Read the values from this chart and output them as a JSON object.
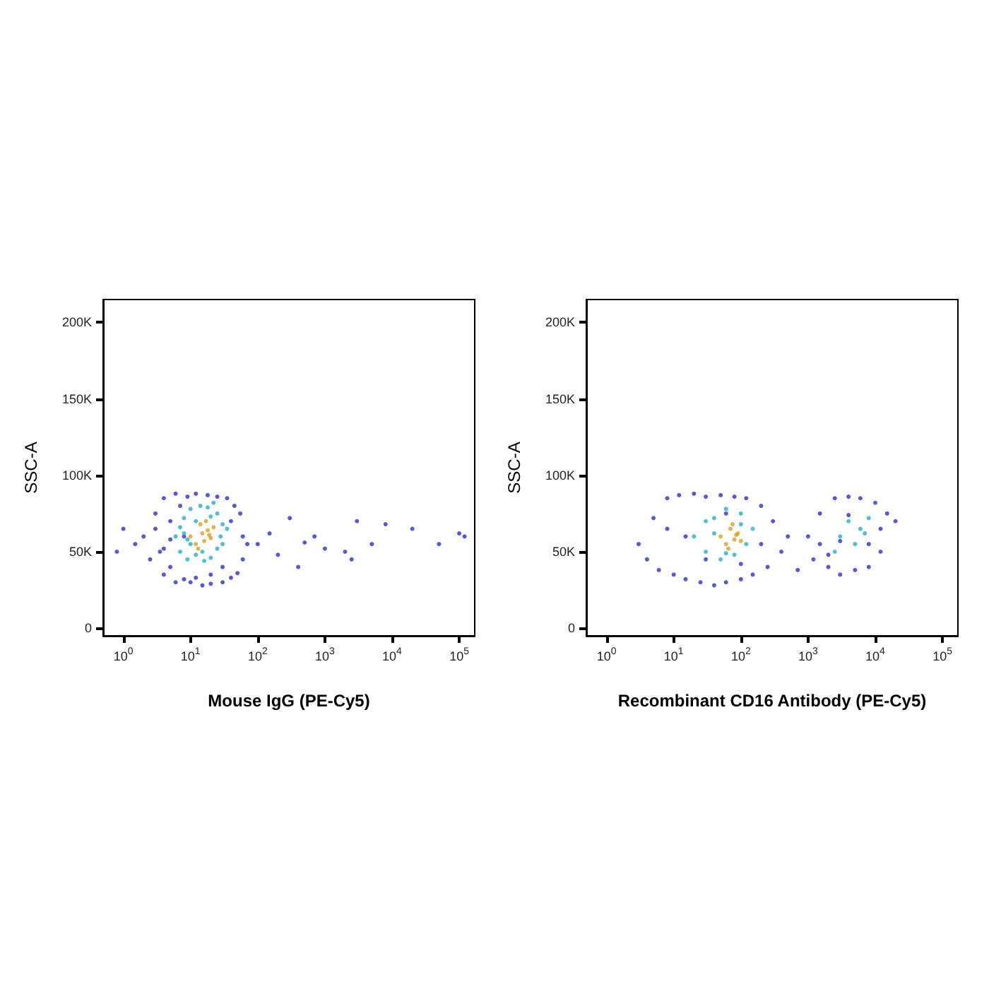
{
  "chart_data": [
    {
      "type": "scatter",
      "xlabel": "Mouse IgG (PE-Cy5)",
      "ylabel": "SSC-A",
      "log": "x",
      "grid": false,
      "marker": "circle",
      "xlim": [
        0.5,
        170000
      ],
      "ylim": [
        -5000,
        215000
      ],
      "xticks": [
        {
          "value": 1,
          "label": "10$^{0}$"
        },
        {
          "value": 10,
          "label": "10$^{1}$"
        },
        {
          "value": 100,
          "label": "10$^{2}$"
        },
        {
          "value": 1000,
          "label": "10$^{3}$"
        },
        {
          "value": 10000,
          "label": "10$^{4}$"
        },
        {
          "value": 100000,
          "label": "10$^{5}$"
        }
      ],
      "yticks": [
        0,
        {
          "value": 50000,
          "label": "50K"
        },
        {
          "value": 100000,
          "label": "100K"
        },
        {
          "value": 150000,
          "label": "150K"
        },
        {
          "value": 200000,
          "label": "200K"
        }
      ],
      "series": [
        {
          "color": "#2a2fd0",
          "x": [
            2,
            2.5,
            3,
            3.5,
            4,
            4,
            5,
            5,
            6,
            6,
            7,
            8,
            9,
            10,
            12,
            15,
            18,
            20,
            25,
            30,
            35,
            40,
            45,
            50,
            55,
            60,
            70,
            3,
            4,
            5,
            30,
            40,
            60,
            8,
            12,
            20,
            1,
            1.5,
            0.8,
            100,
            150,
            200,
            300,
            500,
            700,
            1000,
            2000,
            3000,
            5000,
            8000,
            20000,
            50000,
            100000,
            120000,
            400,
            2500
          ],
          "values": [
            60000,
            45000,
            75000,
            50000,
            35000,
            85000,
            40000,
            70000,
            30000,
            88000,
            80000,
            32000,
            86000,
            30000,
            88000,
            28000,
            87000,
            29000,
            86000,
            30000,
            85000,
            33000,
            80000,
            36000,
            75000,
            45000,
            55000,
            65000,
            52000,
            58000,
            40000,
            70000,
            60000,
            60000,
            33000,
            35000,
            65000,
            55000,
            50000,
            55000,
            62000,
            48000,
            72000,
            56000,
            60000,
            52000,
            50000,
            70000,
            55000,
            68000,
            65000,
            55000,
            62000,
            60000,
            40000,
            45000
          ]
        },
        {
          "color": "#22b0c8",
          "x": [
            6,
            7,
            8,
            9,
            10,
            12,
            14,
            16,
            18,
            20,
            25,
            30,
            35,
            8,
            10,
            12,
            15,
            20,
            25,
            30,
            7,
            9,
            28,
            22
          ],
          "values": [
            60000,
            50000,
            72000,
            45000,
            78000,
            48000,
            80000,
            44000,
            79000,
            46000,
            75000,
            55000,
            65000,
            62000,
            55000,
            70000,
            50000,
            73000,
            52000,
            68000,
            66000,
            58000,
            60000,
            82000
          ]
        },
        {
          "color": "#d8a020",
          "x": [
            10,
            12,
            14,
            15,
            16,
            18,
            20,
            22,
            13,
            17,
            19
          ],
          "values": [
            60000,
            55000,
            68000,
            62000,
            57000,
            64000,
            59000,
            66000,
            52000,
            70000,
            61000
          ]
        }
      ]
    },
    {
      "type": "scatter",
      "xlabel": "Recombinant CD16 Antibody (PE-Cy5)",
      "ylabel": "SSC-A",
      "log": "x",
      "grid": false,
      "marker": "circle",
      "xlim": [
        0.5,
        170000
      ],
      "ylim": [
        -5000,
        215000
      ],
      "xticks": [
        {
          "value": 1,
          "label": "10$^{0}$"
        },
        {
          "value": 10,
          "label": "10$^{1}$"
        },
        {
          "value": 100,
          "label": "10$^{2}$"
        },
        {
          "value": 1000,
          "label": "10$^{3}$"
        },
        {
          "value": 10000,
          "label": "10$^{4}$"
        },
        {
          "value": 100000,
          "label": "10$^{5}$"
        }
      ],
      "yticks": [
        0,
        {
          "value": 50000,
          "label": "50K"
        },
        {
          "value": 100000,
          "label": "100K"
        },
        {
          "value": 150000,
          "label": "150K"
        },
        {
          "value": 200000,
          "label": "200K"
        }
      ],
      "series": [
        {
          "color": "#2a2fd0",
          "x": [
            3,
            4,
            5,
            6,
            8,
            10,
            12,
            15,
            20,
            25,
            30,
            40,
            50,
            60,
            80,
            100,
            120,
            150,
            200,
            250,
            300,
            400,
            500,
            8,
            15,
            30,
            60,
            100,
            200,
            1000,
            1200,
            1500,
            2000,
            2500,
            3000,
            4000,
            5000,
            6000,
            8000,
            10000,
            12000,
            15000,
            20000,
            1500,
            3000,
            8000,
            12000,
            2000,
            4000,
            700
          ],
          "values": [
            55000,
            45000,
            72000,
            38000,
            85000,
            35000,
            87000,
            32000,
            88000,
            30000,
            86000,
            28000,
            87000,
            30000,
            86000,
            32000,
            85000,
            35000,
            80000,
            40000,
            70000,
            50000,
            60000,
            65000,
            60000,
            45000,
            75000,
            42000,
            55000,
            60000,
            45000,
            75000,
            40000,
            85000,
            35000,
            86000,
            38000,
            85000,
            40000,
            82000,
            50000,
            75000,
            70000,
            55000,
            57000,
            55000,
            65000,
            48000,
            74000,
            38000
          ]
        },
        {
          "color": "#22b0c8",
          "x": [
            20,
            30,
            40,
            50,
            60,
            80,
            100,
            120,
            150,
            40,
            60,
            100,
            30,
            3000,
            4000,
            5000,
            6000,
            8000,
            2500,
            7000
          ],
          "values": [
            60000,
            50000,
            72000,
            45000,
            78000,
            48000,
            75000,
            55000,
            65000,
            62000,
            49000,
            68000,
            70000,
            60000,
            70000,
            55000,
            65000,
            72000,
            50000,
            62000
          ]
        },
        {
          "color": "#d8a020",
          "x": [
            50,
            60,
            70,
            80,
            90,
            100,
            65,
            75,
            85
          ],
          "values": [
            60000,
            55000,
            65000,
            58000,
            62000,
            57000,
            52000,
            68000,
            61000
          ]
        }
      ]
    }
  ]
}
